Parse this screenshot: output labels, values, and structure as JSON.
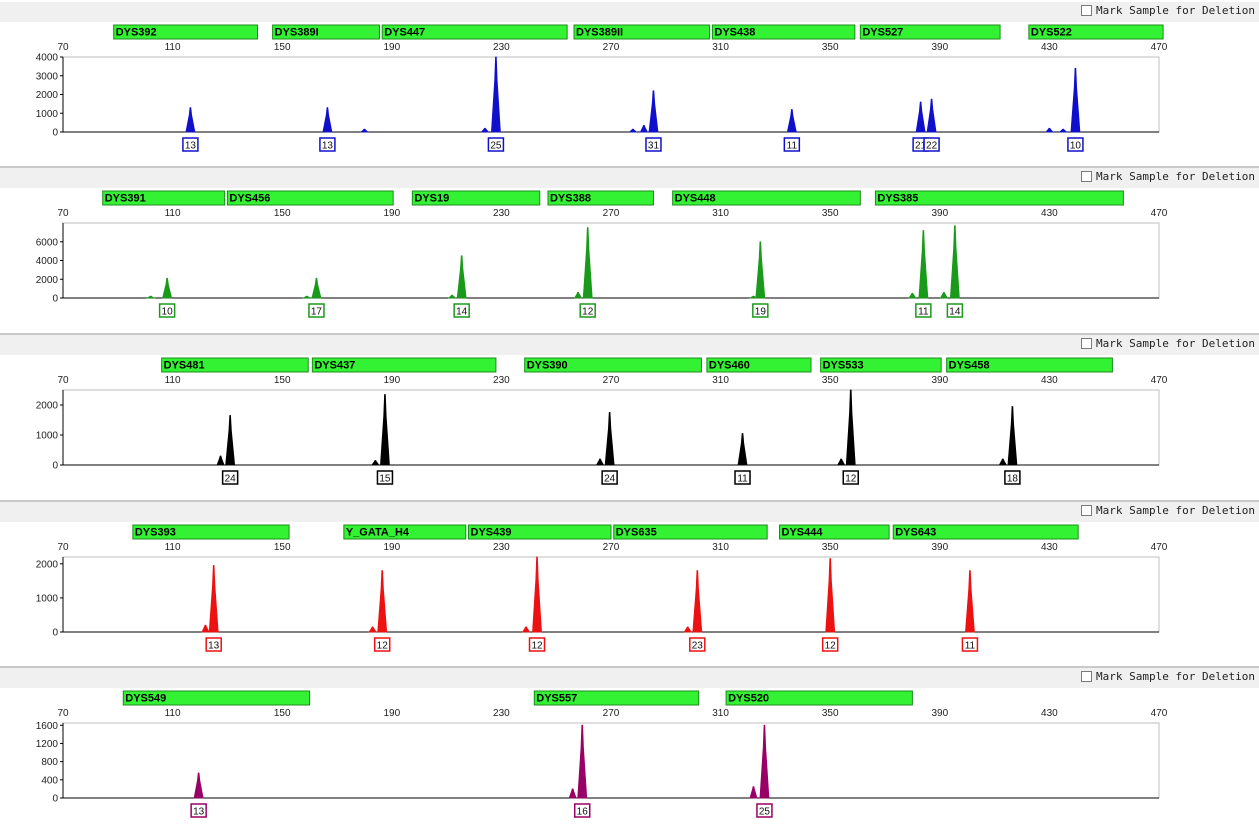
{
  "mark_label": "Mark Sample for Deletion",
  "colors": {
    "marker_fill": "#33f233",
    "marker_border": "#1c8c1c"
  },
  "chart_data": [
    {
      "type": "line",
      "color": "#1010cc",
      "xlim": [
        70,
        470
      ],
      "x_ticks": [
        70,
        110,
        150,
        190,
        230,
        270,
        310,
        350,
        390,
        430,
        470
      ],
      "ylim": [
        0,
        4000
      ],
      "y_ticks": [
        0,
        1000,
        2000,
        3000,
        4000
      ],
      "markers": [
        {
          "name": "DYS392",
          "start": 88.5,
          "end": 141
        },
        {
          "name": "DYS389I",
          "start": 146.5,
          "end": 185.5
        },
        {
          "name": "DYS447",
          "start": 186.5,
          "end": 254
        },
        {
          "name": "DYS389II",
          "start": 256.5,
          "end": 306
        },
        {
          "name": "DYS438",
          "start": 307,
          "end": 359
        },
        {
          "name": "DYS527",
          "start": 361,
          "end": 412
        },
        {
          "name": "DYS522",
          "start": 422.5,
          "end": 471.5
        }
      ],
      "peaks": [
        {
          "x": 116.5,
          "y": 1300,
          "allele": "13"
        },
        {
          "x": 166.5,
          "y": 1300,
          "allele": "13"
        },
        {
          "x": 180,
          "y": 150
        },
        {
          "x": 224,
          "y": 200
        },
        {
          "x": 228,
          "y": 4000,
          "allele": "25"
        },
        {
          "x": 278,
          "y": 150
        },
        {
          "x": 282,
          "y": 350
        },
        {
          "x": 285.5,
          "y": 2200,
          "allele": "31"
        },
        {
          "x": 336,
          "y": 1200,
          "allele": "11"
        },
        {
          "x": 383,
          "y": 1600,
          "allele": "21"
        },
        {
          "x": 387,
          "y": 1750,
          "allele": "22"
        },
        {
          "x": 430,
          "y": 200
        },
        {
          "x": 435,
          "y": 150
        },
        {
          "x": 439.5,
          "y": 3400,
          "allele": "10"
        }
      ]
    },
    {
      "type": "line",
      "color": "#1a9a1a",
      "xlim": [
        70,
        470
      ],
      "x_ticks": [
        70,
        110,
        150,
        190,
        230,
        270,
        310,
        350,
        390,
        430,
        470
      ],
      "ylim": [
        0,
        8000
      ],
      "y_ticks": [
        0,
        2000,
        4000,
        6000
      ],
      "markers": [
        {
          "name": "DYS391",
          "start": 84.5,
          "end": 129
        },
        {
          "name": "DYS456",
          "start": 130,
          "end": 190.5
        },
        {
          "name": "DYS19",
          "start": 197.5,
          "end": 244
        },
        {
          "name": "DYS388",
          "start": 247,
          "end": 285.5
        },
        {
          "name": "DYS448",
          "start": 292.5,
          "end": 361
        },
        {
          "name": "DYS385",
          "start": 366.5,
          "end": 457
        }
      ],
      "peaks": [
        {
          "x": 102,
          "y": 200
        },
        {
          "x": 108,
          "y": 2100,
          "allele": "10"
        },
        {
          "x": 159,
          "y": 200
        },
        {
          "x": 162.5,
          "y": 2100,
          "allele": "17"
        },
        {
          "x": 212,
          "y": 300
        },
        {
          "x": 215.5,
          "y": 4500,
          "allele": "14"
        },
        {
          "x": 258,
          "y": 600
        },
        {
          "x": 261.5,
          "y": 7500,
          "allele": "12"
        },
        {
          "x": 322,
          "y": 200
        },
        {
          "x": 324.5,
          "y": 6000,
          "allele": "19"
        },
        {
          "x": 380,
          "y": 500
        },
        {
          "x": 384,
          "y": 7200,
          "allele": "11"
        },
        {
          "x": 391.5,
          "y": 600
        },
        {
          "x": 395.5,
          "y": 7700,
          "allele": "14"
        }
      ]
    },
    {
      "type": "line",
      "color": "#000000",
      "xlim": [
        70,
        470
      ],
      "x_ticks": [
        70,
        110,
        150,
        190,
        230,
        270,
        310,
        350,
        390,
        430,
        470
      ],
      "ylim": [
        0,
        2500
      ],
      "y_ticks": [
        0,
        1000,
        2000
      ],
      "markers": [
        {
          "name": "DYS481",
          "start": 106,
          "end": 159.5
        },
        {
          "name": "DYS437",
          "start": 161,
          "end": 228
        },
        {
          "name": "DYS390",
          "start": 238.5,
          "end": 303
        },
        {
          "name": "DYS460",
          "start": 305,
          "end": 343
        },
        {
          "name": "DYS533",
          "start": 346.5,
          "end": 390.5
        },
        {
          "name": "DYS458",
          "start": 392.5,
          "end": 453
        }
      ],
      "peaks": [
        {
          "x": 127.5,
          "y": 300
        },
        {
          "x": 131,
          "y": 1650,
          "allele": "24"
        },
        {
          "x": 184,
          "y": 150
        },
        {
          "x": 187.5,
          "y": 2350,
          "allele": "15"
        },
        {
          "x": 266,
          "y": 200
        },
        {
          "x": 269.5,
          "y": 1750,
          "allele": "24"
        },
        {
          "x": 318,
          "y": 1050,
          "allele": "11"
        },
        {
          "x": 354,
          "y": 200
        },
        {
          "x": 357.5,
          "y": 2500,
          "allele": "12"
        },
        {
          "x": 413,
          "y": 200
        },
        {
          "x": 416.5,
          "y": 1950,
          "allele": "18"
        }
      ]
    },
    {
      "type": "line",
      "color": "#ee1111",
      "xlim": [
        70,
        470
      ],
      "x_ticks": [
        70,
        110,
        150,
        190,
        230,
        270,
        310,
        350,
        390,
        430,
        470
      ],
      "ylim": [
        0,
        2200
      ],
      "y_ticks": [
        0,
        1000,
        2000
      ],
      "markers": [
        {
          "name": "DYS393",
          "start": 95.5,
          "end": 152.5
        },
        {
          "name": "Y_GATA_H4",
          "start": 172.5,
          "end": 217
        },
        {
          "name": "DYS439",
          "start": 218,
          "end": 270
        },
        {
          "name": "DYS635",
          "start": 271,
          "end": 327
        },
        {
          "name": "DYS444",
          "start": 331.5,
          "end": 371.5
        },
        {
          "name": "DYS643",
          "start": 373,
          "end": 440.5
        }
      ],
      "peaks": [
        {
          "x": 122,
          "y": 200
        },
        {
          "x": 125,
          "y": 1950,
          "allele": "13"
        },
        {
          "x": 183,
          "y": 150
        },
        {
          "x": 186.5,
          "y": 1800,
          "allele": "12"
        },
        {
          "x": 239,
          "y": 150
        },
        {
          "x": 243,
          "y": 2200,
          "allele": "12"
        },
        {
          "x": 298,
          "y": 150
        },
        {
          "x": 301.5,
          "y": 1800,
          "allele": "23"
        },
        {
          "x": 350,
          "y": 2150,
          "allele": "12"
        },
        {
          "x": 401,
          "y": 1800,
          "allele": "11"
        }
      ]
    },
    {
      "type": "line",
      "color": "#990066",
      "xlim": [
        70,
        470
      ],
      "x_ticks": [
        70,
        110,
        150,
        190,
        230,
        270,
        310,
        350,
        390,
        430,
        470
      ],
      "ylim": [
        0,
        1650
      ],
      "y_ticks": [
        0,
        400,
        800,
        1200,
        1600
      ],
      "markers": [
        {
          "name": "DYS549",
          "start": 92,
          "end": 160
        },
        {
          "name": "DYS557",
          "start": 242,
          "end": 302
        },
        {
          "name": "DYS520",
          "start": 312,
          "end": 380
        }
      ],
      "peaks": [
        {
          "x": 119.5,
          "y": 550,
          "allele": "13"
        },
        {
          "x": 256,
          "y": 200
        },
        {
          "x": 259.5,
          "y": 1600,
          "allele": "16"
        },
        {
          "x": 322,
          "y": 250
        },
        {
          "x": 326,
          "y": 1600,
          "allele": "25"
        }
      ]
    }
  ]
}
